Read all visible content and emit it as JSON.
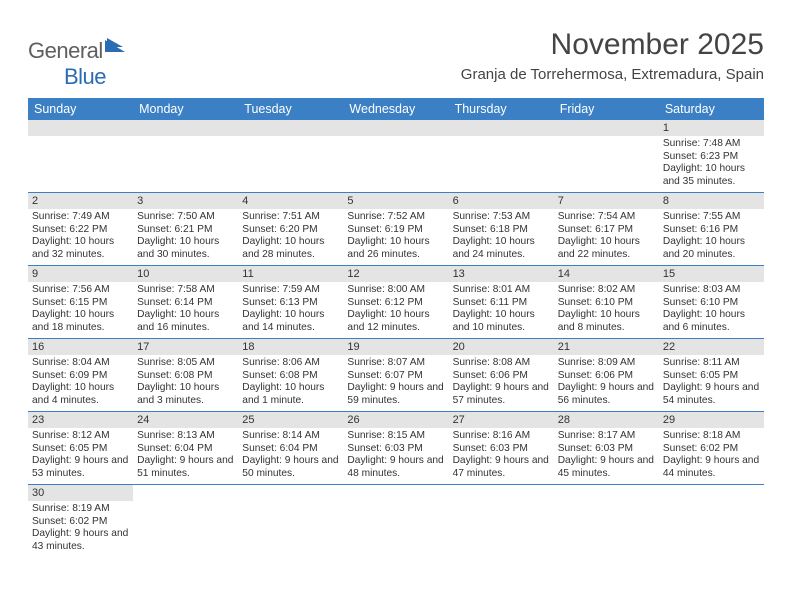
{
  "brand": {
    "part1": "General",
    "part2": "Blue"
  },
  "title": "November 2025",
  "location": "Granja de Torrehermosa, Extremadura, Spain",
  "colors": {
    "header_bg": "#3b7fc4",
    "header_fg": "#ffffff",
    "daynum_bg": "#e4e4e4",
    "rule": "#3b7fc4",
    "text": "#333333",
    "title": "#444444",
    "logo_gray": "#5f5f5f",
    "logo_blue": "#2a6db4"
  },
  "weekdays": [
    "Sunday",
    "Monday",
    "Tuesday",
    "Wednesday",
    "Thursday",
    "Friday",
    "Saturday"
  ],
  "layout": {
    "first_weekday_index": 6,
    "days_in_month": 30
  },
  "days": {
    "1": {
      "sunrise": "7:48 AM",
      "sunset": "6:23 PM",
      "daylight": "10 hours and 35 minutes."
    },
    "2": {
      "sunrise": "7:49 AM",
      "sunset": "6:22 PM",
      "daylight": "10 hours and 32 minutes."
    },
    "3": {
      "sunrise": "7:50 AM",
      "sunset": "6:21 PM",
      "daylight": "10 hours and 30 minutes."
    },
    "4": {
      "sunrise": "7:51 AM",
      "sunset": "6:20 PM",
      "daylight": "10 hours and 28 minutes."
    },
    "5": {
      "sunrise": "7:52 AM",
      "sunset": "6:19 PM",
      "daylight": "10 hours and 26 minutes."
    },
    "6": {
      "sunrise": "7:53 AM",
      "sunset": "6:18 PM",
      "daylight": "10 hours and 24 minutes."
    },
    "7": {
      "sunrise": "7:54 AM",
      "sunset": "6:17 PM",
      "daylight": "10 hours and 22 minutes."
    },
    "8": {
      "sunrise": "7:55 AM",
      "sunset": "6:16 PM",
      "daylight": "10 hours and 20 minutes."
    },
    "9": {
      "sunrise": "7:56 AM",
      "sunset": "6:15 PM",
      "daylight": "10 hours and 18 minutes."
    },
    "10": {
      "sunrise": "7:58 AM",
      "sunset": "6:14 PM",
      "daylight": "10 hours and 16 minutes."
    },
    "11": {
      "sunrise": "7:59 AM",
      "sunset": "6:13 PM",
      "daylight": "10 hours and 14 minutes."
    },
    "12": {
      "sunrise": "8:00 AM",
      "sunset": "6:12 PM",
      "daylight": "10 hours and 12 minutes."
    },
    "13": {
      "sunrise": "8:01 AM",
      "sunset": "6:11 PM",
      "daylight": "10 hours and 10 minutes."
    },
    "14": {
      "sunrise": "8:02 AM",
      "sunset": "6:10 PM",
      "daylight": "10 hours and 8 minutes."
    },
    "15": {
      "sunrise": "8:03 AM",
      "sunset": "6:10 PM",
      "daylight": "10 hours and 6 minutes."
    },
    "16": {
      "sunrise": "8:04 AM",
      "sunset": "6:09 PM",
      "daylight": "10 hours and 4 minutes."
    },
    "17": {
      "sunrise": "8:05 AM",
      "sunset": "6:08 PM",
      "daylight": "10 hours and 3 minutes."
    },
    "18": {
      "sunrise": "8:06 AM",
      "sunset": "6:08 PM",
      "daylight": "10 hours and 1 minute."
    },
    "19": {
      "sunrise": "8:07 AM",
      "sunset": "6:07 PM",
      "daylight": "9 hours and 59 minutes."
    },
    "20": {
      "sunrise": "8:08 AM",
      "sunset": "6:06 PM",
      "daylight": "9 hours and 57 minutes."
    },
    "21": {
      "sunrise": "8:09 AM",
      "sunset": "6:06 PM",
      "daylight": "9 hours and 56 minutes."
    },
    "22": {
      "sunrise": "8:11 AM",
      "sunset": "6:05 PM",
      "daylight": "9 hours and 54 minutes."
    },
    "23": {
      "sunrise": "8:12 AM",
      "sunset": "6:05 PM",
      "daylight": "9 hours and 53 minutes."
    },
    "24": {
      "sunrise": "8:13 AM",
      "sunset": "6:04 PM",
      "daylight": "9 hours and 51 minutes."
    },
    "25": {
      "sunrise": "8:14 AM",
      "sunset": "6:04 PM",
      "daylight": "9 hours and 50 minutes."
    },
    "26": {
      "sunrise": "8:15 AM",
      "sunset": "6:03 PM",
      "daylight": "9 hours and 48 minutes."
    },
    "27": {
      "sunrise": "8:16 AM",
      "sunset": "6:03 PM",
      "daylight": "9 hours and 47 minutes."
    },
    "28": {
      "sunrise": "8:17 AM",
      "sunset": "6:03 PM",
      "daylight": "9 hours and 45 minutes."
    },
    "29": {
      "sunrise": "8:18 AM",
      "sunset": "6:02 PM",
      "daylight": "9 hours and 44 minutes."
    },
    "30": {
      "sunrise": "8:19 AM",
      "sunset": "6:02 PM",
      "daylight": "9 hours and 43 minutes."
    }
  },
  "labels": {
    "sunrise": "Sunrise: ",
    "sunset": "Sunset: ",
    "daylight": "Daylight: "
  }
}
